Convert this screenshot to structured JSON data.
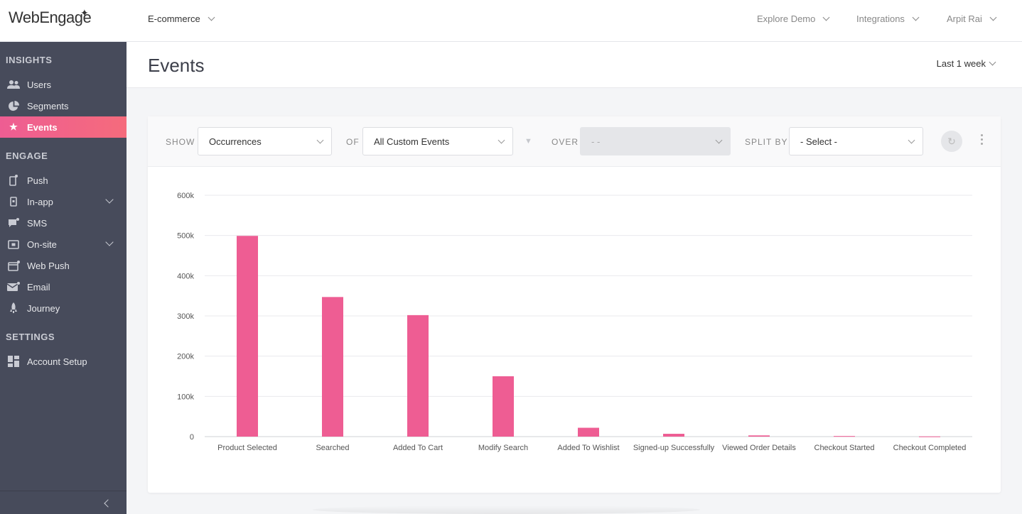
{
  "brand": {
    "logo_text": "WebEngage"
  },
  "header": {
    "project": "E-commerce",
    "menus": [
      "Explore Demo",
      "Integrations",
      "Arpit Rai"
    ]
  },
  "sidebar": {
    "sections": {
      "insights": "INSIGHTS",
      "engage": "ENGAGE",
      "settings": "SETTINGS"
    },
    "items": {
      "users": "Users",
      "segments": "Segments",
      "events": "Events",
      "push": "Push",
      "inapp": "In-app",
      "sms": "SMS",
      "onsite": "On-site",
      "webpush": "Web Push",
      "email": "Email",
      "journey": "Journey",
      "account": "Account Setup"
    }
  },
  "page": {
    "title": "Events",
    "date_range": "Last 1 week"
  },
  "filters": {
    "show_label": "SHOW",
    "show_value": "Occurrences",
    "of_label": "OF",
    "of_value": "All Custom Events",
    "over_label": "OVER",
    "over_value": "- -",
    "split_label": "SPLIT BY",
    "split_value": "- Select -"
  },
  "colors": {
    "accent": "#ee5d93",
    "bar": "#ee5d93",
    "sidebar": "#474b5b"
  },
  "chart_data": {
    "type": "bar",
    "categories": [
      "Product Selected",
      "Searched",
      "Added To Cart",
      "Modify Search",
      "Added To Wishlist",
      "Signed-up Successfully",
      "Viewed Order Details",
      "Checkout Started",
      "Checkout Completed"
    ],
    "values": [
      499000,
      347000,
      302000,
      150000,
      22000,
      7000,
      3000,
      1500,
      500
    ],
    "y_ticks": [
      "0",
      "100k",
      "200k",
      "300k",
      "400k",
      "500k",
      "600k"
    ],
    "ylim": [
      0,
      600000
    ],
    "grid": true
  }
}
